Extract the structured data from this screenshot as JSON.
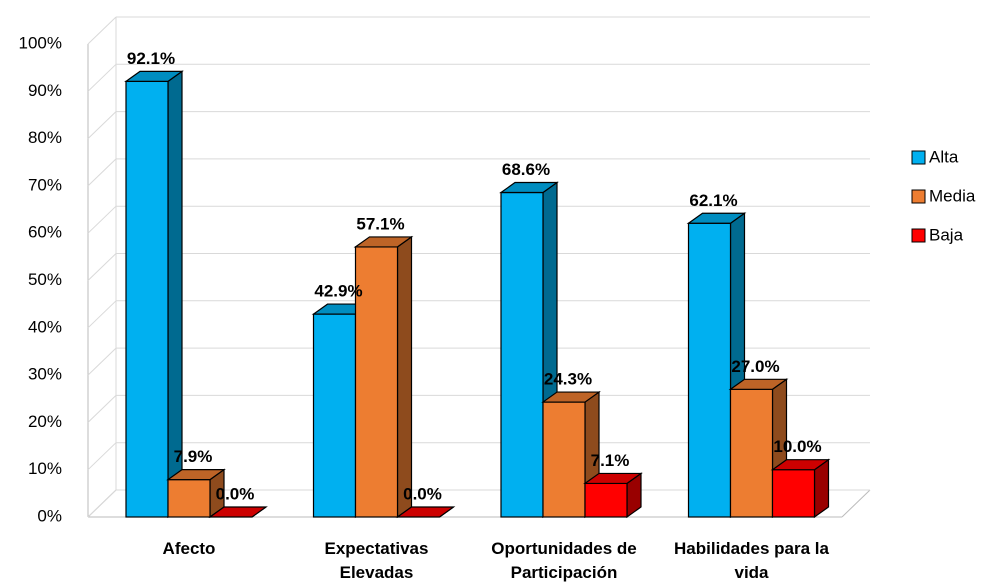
{
  "chart_data": {
    "type": "bar3d",
    "categories": [
      "Afecto",
      "Expectativas Elevadas",
      "Oportunidades de Participación",
      "Habilidades para la vida"
    ],
    "series": [
      {
        "name": "Alta",
        "color": "#00b0f0",
        "values": [
          92.1,
          42.9,
          68.6,
          62.1
        ],
        "value_labels": [
          "92.1%",
          "42.9%",
          "68.6%",
          "62.1%"
        ]
      },
      {
        "name": "Media",
        "color": "#ed7d31",
        "values": [
          7.9,
          57.1,
          24.3,
          27.0
        ],
        "value_labels": [
          "7.9%",
          "57.1%",
          "24.3%",
          "27.0%"
        ]
      },
      {
        "name": "Baja",
        "color": "#ff0000",
        "values": [
          0.0,
          0.0,
          7.1,
          10.0
        ],
        "value_labels": [
          "0.0%",
          "0.0%",
          "7.1%",
          "10.0%"
        ]
      }
    ],
    "ylim": [
      0,
      100
    ],
    "yticks": [
      {
        "value": 0,
        "label": "0%"
      },
      {
        "value": 10,
        "label": "10%"
      },
      {
        "value": 20,
        "label": "20%"
      },
      {
        "value": 30,
        "label": "30%"
      },
      {
        "value": 40,
        "label": "40%"
      },
      {
        "value": 50,
        "label": "50%"
      },
      {
        "value": 60,
        "label": "60%"
      },
      {
        "value": 70,
        "label": "70%"
      },
      {
        "value": 80,
        "label": "80%"
      },
      {
        "value": 90,
        "label": "90%"
      },
      {
        "value": 100,
        "label": "100%"
      }
    ],
    "grid": true,
    "legend": "right"
  }
}
